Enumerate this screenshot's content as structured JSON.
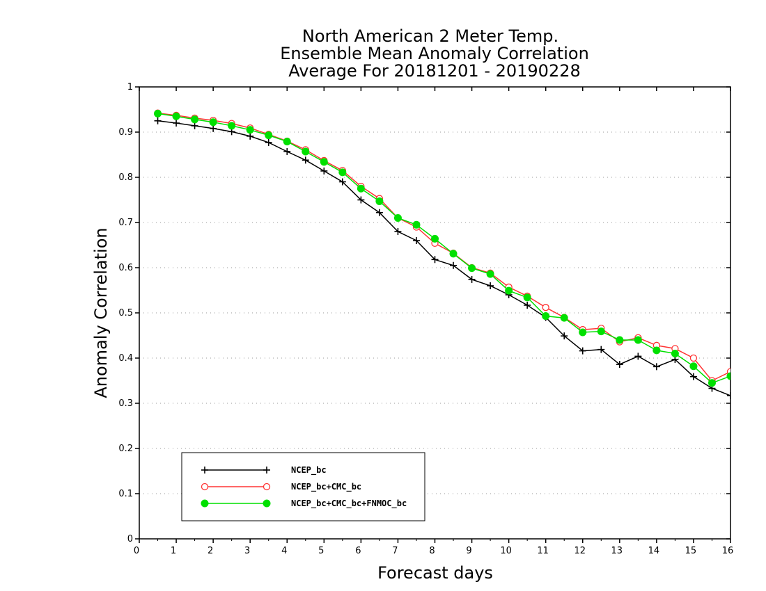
{
  "chart_data": {
    "type": "line",
    "title": [
      "North American 2 Meter Temp.",
      "Ensemble Mean Anomaly Correlation",
      "Average For 20181201 - 20190228"
    ],
    "xlabel": "Forecast days",
    "ylabel": "Anomaly Correlation",
    "xlim": [
      0,
      16
    ],
    "ylim": [
      0,
      1
    ],
    "xticks": [
      0,
      1,
      2,
      3,
      4,
      5,
      6,
      7,
      8,
      9,
      10,
      11,
      12,
      13,
      14,
      15,
      16
    ],
    "yticks": [
      0,
      0.1,
      0.2,
      0.3,
      0.4,
      0.5,
      0.6,
      0.7,
      0.8,
      0.9,
      1
    ],
    "grid": "horizontal-dotted",
    "legend_position": "bottom-left",
    "x": [
      0.5,
      1,
      1.5,
      2,
      2.5,
      3,
      3.5,
      4,
      4.5,
      5,
      5.5,
      6,
      6.5,
      7,
      7.5,
      8,
      8.5,
      9,
      9.5,
      10,
      10.5,
      11,
      11.5,
      12,
      12.5,
      13,
      13.5,
      14,
      14.5,
      15,
      15.5,
      16
    ],
    "series": [
      {
        "name": "NCEP_bc",
        "color": "#000000",
        "marker": "plus",
        "values": [
          0.925,
          0.92,
          0.914,
          0.908,
          0.901,
          0.891,
          0.877,
          0.857,
          0.838,
          0.814,
          0.79,
          0.75,
          0.722,
          0.68,
          0.66,
          0.618,
          0.605,
          0.574,
          0.56,
          0.54,
          0.517,
          0.49,
          0.449,
          0.416,
          0.419,
          0.386,
          0.404,
          0.381,
          0.397,
          0.359,
          0.333,
          0.317
        ]
      },
      {
        "name": "NCEP_bc+CMC_bc",
        "color": "#ff3333",
        "marker": "open-circle",
        "values": [
          0.942,
          0.937,
          0.931,
          0.926,
          0.919,
          0.909,
          0.895,
          0.88,
          0.861,
          0.837,
          0.815,
          0.78,
          0.753,
          0.71,
          0.69,
          0.654,
          0.632,
          0.6,
          0.588,
          0.557,
          0.537,
          0.512,
          0.49,
          0.463,
          0.466,
          0.436,
          0.445,
          0.428,
          0.421,
          0.4,
          0.35,
          0.37
        ]
      },
      {
        "name": "NCEP_bc+CMC_bc+FNMOC_bc",
        "color": "#00e000",
        "marker": "filled-circle",
        "values": [
          0.941,
          0.935,
          0.928,
          0.922,
          0.914,
          0.905,
          0.893,
          0.879,
          0.857,
          0.834,
          0.811,
          0.775,
          0.747,
          0.71,
          0.695,
          0.664,
          0.631,
          0.599,
          0.586,
          0.549,
          0.534,
          0.493,
          0.489,
          0.457,
          0.459,
          0.44,
          0.44,
          0.417,
          0.41,
          0.382,
          0.345,
          0.36
        ]
      }
    ]
  }
}
